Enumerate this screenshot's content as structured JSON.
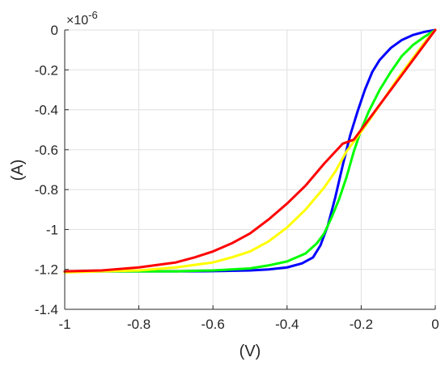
{
  "chart_data": {
    "type": "line",
    "xlabel": "(V)",
    "ylabel": "(A)",
    "y_exponent_base": "×10",
    "y_exponent_power": "-6",
    "xlim": [
      -1,
      0
    ],
    "ylim": [
      -1.4,
      0
    ],
    "grid": true,
    "x_ticks": [
      -1,
      -0.8,
      -0.6,
      -0.4,
      -0.2,
      0
    ],
    "x_tick_labels": [
      "-1",
      "-0.8",
      "-0.6",
      "-0.4",
      "-0.2",
      "0"
    ],
    "y_ticks": [
      0,
      -0.2,
      -0.4,
      -0.6,
      -0.8,
      -1,
      -1.2,
      -1.4
    ],
    "y_tick_labels": [
      "0",
      "-0.2",
      "-0.4",
      "-0.6",
      "-0.8",
      "-1",
      "-1.2",
      "-1.4"
    ],
    "series": [
      {
        "color": "#0000ff",
        "x": [
          -1.0,
          -0.9,
          -0.8,
          -0.7,
          -0.6,
          -0.5,
          -0.45,
          -0.4,
          -0.36,
          -0.33,
          -0.31,
          -0.29,
          -0.27,
          -0.25,
          -0.23,
          -0.21,
          -0.19,
          -0.17,
          -0.15,
          -0.12,
          -0.09,
          -0.06,
          -0.03,
          0.0
        ],
        "y": [
          -1.21,
          -1.21,
          -1.21,
          -1.21,
          -1.209,
          -1.205,
          -1.2,
          -1.19,
          -1.17,
          -1.14,
          -1.08,
          -0.98,
          -0.84,
          -0.68,
          -0.53,
          -0.41,
          -0.3,
          -0.21,
          -0.15,
          -0.09,
          -0.05,
          -0.025,
          -0.01,
          0.0
        ]
      },
      {
        "color": "#00ff00",
        "x": [
          -1.0,
          -0.9,
          -0.8,
          -0.7,
          -0.6,
          -0.5,
          -0.45,
          -0.4,
          -0.35,
          -0.32,
          -0.3,
          -0.28,
          -0.26,
          -0.24,
          -0.22,
          -0.2,
          -0.18,
          -0.15,
          -0.12,
          -0.09,
          -0.06,
          -0.03,
          0.0
        ],
        "y": [
          -1.21,
          -1.21,
          -1.21,
          -1.21,
          -1.205,
          -1.195,
          -1.18,
          -1.16,
          -1.12,
          -1.07,
          -1.02,
          -0.94,
          -0.85,
          -0.74,
          -0.61,
          -0.5,
          -0.41,
          -0.3,
          -0.21,
          -0.13,
          -0.075,
          -0.035,
          0.0
        ]
      },
      {
        "color": "#ffff00",
        "x": [
          -1.0,
          -0.9,
          -0.8,
          -0.7,
          -0.6,
          -0.55,
          -0.5,
          -0.45,
          -0.4,
          -0.35,
          -0.3,
          -0.27,
          -0.24,
          -0.22,
          -0.2,
          -0.17,
          -0.14,
          -0.1,
          -0.06,
          -0.03,
          0.0
        ],
        "y": [
          -1.215,
          -1.21,
          -1.205,
          -1.19,
          -1.165,
          -1.14,
          -1.11,
          -1.06,
          -0.99,
          -0.9,
          -0.79,
          -0.71,
          -0.61,
          -0.56,
          -0.51,
          -0.43,
          -0.35,
          -0.24,
          -0.14,
          -0.065,
          0.0
        ]
      },
      {
        "color": "#ff0000",
        "x": [
          -1.0,
          -0.9,
          -0.8,
          -0.7,
          -0.65,
          -0.6,
          -0.55,
          -0.5,
          -0.45,
          -0.4,
          -0.35,
          -0.3,
          -0.25,
          -0.22,
          -0.2,
          -0.15,
          -0.1,
          -0.05,
          0.0
        ],
        "y": [
          -1.21,
          -1.205,
          -1.19,
          -1.165,
          -1.14,
          -1.11,
          -1.07,
          -1.02,
          -0.95,
          -0.87,
          -0.78,
          -0.67,
          -0.57,
          -0.55,
          -0.5,
          -0.375,
          -0.25,
          -0.125,
          0.0
        ]
      }
    ]
  }
}
